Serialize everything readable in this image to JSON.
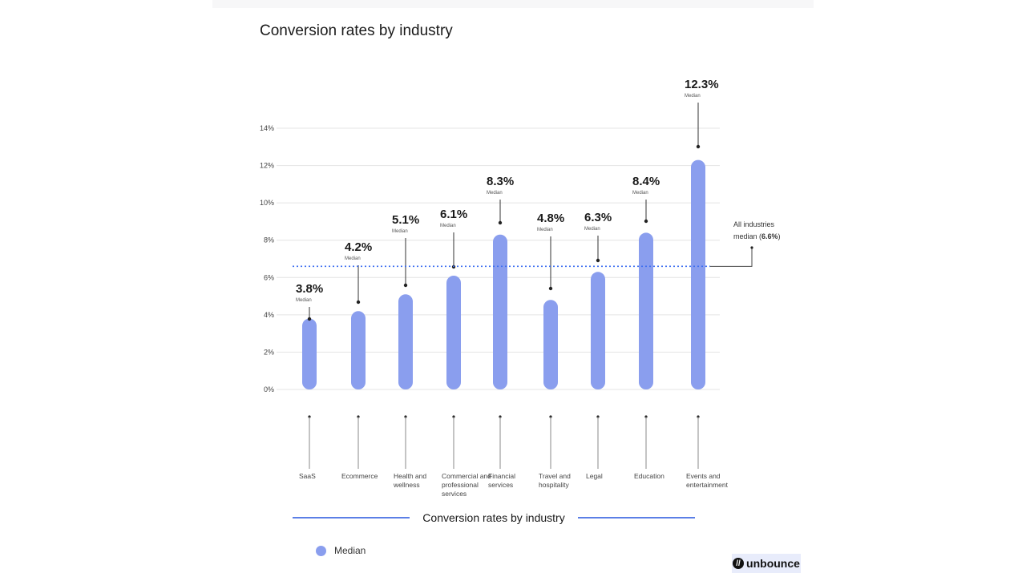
{
  "title": "Conversion rates by industry",
  "chart_data": {
    "type": "bar",
    "title": "Conversion rates by industry",
    "xlabel": "",
    "ylabel": "",
    "ylim": [
      0,
      14
    ],
    "yticks": [
      "0%",
      "2%",
      "4%",
      "6%",
      "8%",
      "10%",
      "12%",
      "14%"
    ],
    "ytick_values": [
      0,
      2,
      4,
      6,
      8,
      10,
      12,
      14
    ],
    "grid": true,
    "categories": [
      "SaaS",
      "Ecommerce",
      "Health and wellness",
      "Commercial and professional services",
      "Financial services",
      "Travel and hospitality",
      "Legal",
      "Education",
      "Events and entertainment"
    ],
    "category_lines": [
      [
        "SaaS"
      ],
      [
        "Ecommerce"
      ],
      [
        "Health and",
        "wellness"
      ],
      [
        "Commercial and",
        "professional",
        "services"
      ],
      [
        "Financial",
        "services"
      ],
      [
        "Travel and",
        "hospitality"
      ],
      [
        "Legal"
      ],
      [
        "Education"
      ],
      [
        "Events and",
        "entertainment"
      ]
    ],
    "series": [
      {
        "name": "Median",
        "values": [
          3.8,
          4.2,
          5.1,
          6.1,
          8.3,
          4.8,
          6.3,
          8.4,
          12.3
        ]
      }
    ],
    "data_labels": [
      "3.8%",
      "4.2%",
      "5.1%",
      "6.1%",
      "8.3%",
      "4.8%",
      "6.3%",
      "8.4%",
      "12.3%"
    ],
    "data_sublabel": "Median",
    "reference_line": {
      "value": 6.6,
      "label_prefix": "All industries",
      "label_mid": "median (",
      "label_value": "6.6%",
      "label_suffix": ")"
    },
    "legend": {
      "label": "Median",
      "placement": "bottom-left"
    },
    "colors": {
      "bar": "#8a9eee",
      "reference": "#3d6ef0",
      "grid": "#e4e4e4"
    }
  },
  "bottom_title": "Conversion rates by industry",
  "brand": {
    "name": "unbounce",
    "mark": "//"
  }
}
